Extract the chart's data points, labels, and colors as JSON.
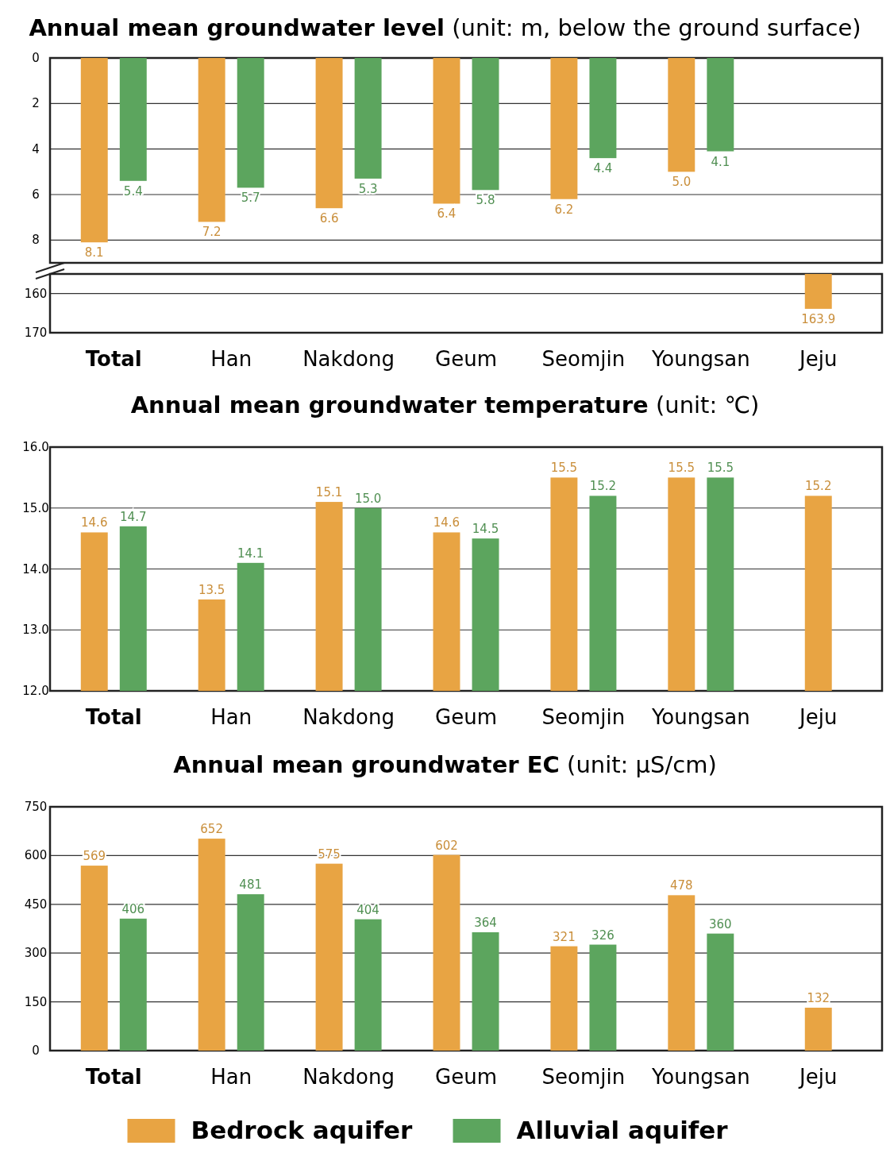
{
  "chart_data": [
    {
      "type": "bar",
      "title": "Annual mean groundwater level",
      "subtitle": "(unit: m, below the ground surface)",
      "categories": [
        null,
        null,
        null,
        null,
        null,
        null,
        null
      ],
      "series": [
        {
          "color": "#e8a443",
          "values": [
            8.1,
            7.2,
            6.6,
            6.4,
            6.2,
            5.0,
            null
          ],
          "value_labels": [
            "8.1",
            "7.2",
            "6.6",
            "6.4",
            "6.2",
            "5.0",
            null
          ]
        },
        {
          "color": "#5ca55e",
          "values": [
            5.4,
            5.7,
            5.3,
            5.8,
            4.4,
            4.1,
            null
          ],
          "value_labels": [
            "5.4",
            "5.7",
            "5.3",
            "5.8",
            "4.4",
            "4.1",
            null
          ]
        }
      ],
      "ylim": [
        9,
        0
      ],
      "yticks": [
        0,
        2,
        4,
        6,
        8
      ],
      "grid": "y",
      "tick_labels": "y"
    },
    {
      "type": "bar",
      "categories": [
        "Total",
        "Han",
        "Nakdong",
        "Geum",
        "Seomjin",
        "Youngsan",
        "Jeju"
      ],
      "series": [
        {
          "color": "#e8a443",
          "values": [
            null,
            null,
            null,
            null,
            null,
            null,
            163.9
          ],
          "value_labels": [
            null,
            null,
            null,
            null,
            null,
            null,
            "163.9"
          ]
        }
      ],
      "ylim": [
        170,
        155
      ],
      "yticks": [
        160,
        170
      ],
      "grid": "y"
    },
    {
      "type": "bar",
      "title": "Annual mean groundwater temperature",
      "subtitle": "(unit: ℃)",
      "categories": [
        "Total",
        "Han",
        "Nakdong",
        "Geum",
        "Seomjin",
        "Youngsan",
        "Jeju"
      ],
      "series": [
        {
          "color": "#e8a443",
          "values": [
            14.6,
            13.5,
            15.1,
            14.6,
            15.5,
            15.5,
            15.2
          ],
          "value_labels": [
            "14.6",
            "13.5",
            "15.1",
            "14.6",
            "15.5",
            "15.5",
            "15.2"
          ]
        },
        {
          "color": "#5ca55e",
          "values": [
            14.7,
            14.1,
            15.0,
            14.5,
            15.2,
            15.5,
            null
          ],
          "value_labels": [
            "14.7",
            "14.1",
            "15.0",
            "14.5",
            "15.2",
            "15.5",
            null
          ]
        }
      ],
      "ylim": [
        12,
        16
      ],
      "yticks": [
        {
          "value": 12,
          "label": "12.0"
        },
        {
          "value": 13,
          "label": "13.0"
        },
        {
          "value": 14,
          "label": "14.0"
        },
        {
          "value": 15,
          "label": "15.0"
        },
        {
          "value": 16,
          "label": "16.0"
        }
      ],
      "grid": "y"
    },
    {
      "type": "bar",
      "title": "Annual mean groundwater EC",
      "subtitle": "(unit: μS/cm)",
      "categories": [
        "Total",
        "Han",
        "Nakdong",
        "Geum",
        "Seomjin",
        "Youngsan",
        "Jeju"
      ],
      "series": [
        {
          "name": "Bedrock aquifer",
          "color": "#e8a443",
          "values": [
            569,
            652,
            575,
            602,
            321,
            478,
            132
          ]
        },
        {
          "name": "Alluvial aquifer",
          "color": "#5ca55e",
          "values": [
            406,
            481,
            404,
            364,
            326,
            360,
            null
          ]
        }
      ],
      "ylim": [
        0,
        750
      ],
      "yticks": [
        0,
        150,
        300,
        450,
        600,
        750
      ],
      "grid": "y",
      "data_labels": true,
      "legend": "bottom"
    }
  ]
}
